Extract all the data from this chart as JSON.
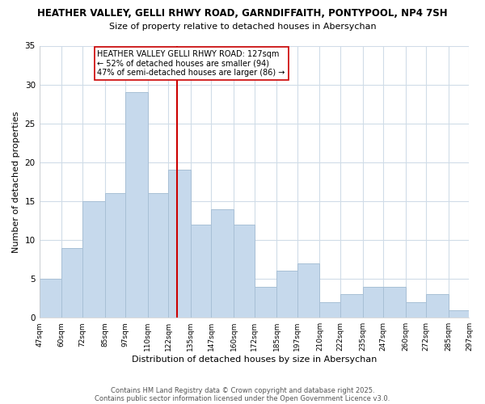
{
  "title": "HEATHER VALLEY, GELLI RHWY ROAD, GARNDIFFAITH, PONTYPOOL, NP4 7SH",
  "subtitle": "Size of property relative to detached houses in Abersychan",
  "xlabel": "Distribution of detached houses by size in Abersychan",
  "ylabel": "Number of detached properties",
  "bins": [
    47,
    60,
    72,
    85,
    97,
    110,
    122,
    135,
    147,
    160,
    172,
    185,
    197,
    210,
    222,
    235,
    247,
    260,
    272,
    285,
    297
  ],
  "counts": [
    5,
    9,
    15,
    16,
    29,
    16,
    19,
    12,
    14,
    12,
    4,
    6,
    7,
    2,
    3,
    4,
    4,
    2,
    3,
    1
  ],
  "bar_color": "#c6d9ec",
  "bar_edge_color": "#a8c0d6",
  "vline_x": 127,
  "vline_color": "#cc0000",
  "annotation_title": "HEATHER VALLEY GELLI RHWY ROAD: 127sqm",
  "annotation_line1": "← 52% of detached houses are smaller (94)",
  "annotation_line2": "47% of semi-detached houses are larger (86) →",
  "annotation_box_facecolor": "#ffffff",
  "annotation_box_edgecolor": "#cc0000",
  "ylim": [
    0,
    35
  ],
  "yticks": [
    0,
    5,
    10,
    15,
    20,
    25,
    30,
    35
  ],
  "tick_labels": [
    "47sqm",
    "60sqm",
    "72sqm",
    "85sqm",
    "97sqm",
    "110sqm",
    "122sqm",
    "135sqm",
    "147sqm",
    "160sqm",
    "172sqm",
    "185sqm",
    "197sqm",
    "210sqm",
    "222sqm",
    "235sqm",
    "247sqm",
    "260sqm",
    "272sqm",
    "285sqm",
    "297sqm"
  ],
  "footnote1": "Contains HM Land Registry data © Crown copyright and database right 2025.",
  "footnote2": "Contains public sector information licensed under the Open Government Licence v3.0.",
  "background_color": "#ffffff",
  "grid_color": "#d0dce8"
}
